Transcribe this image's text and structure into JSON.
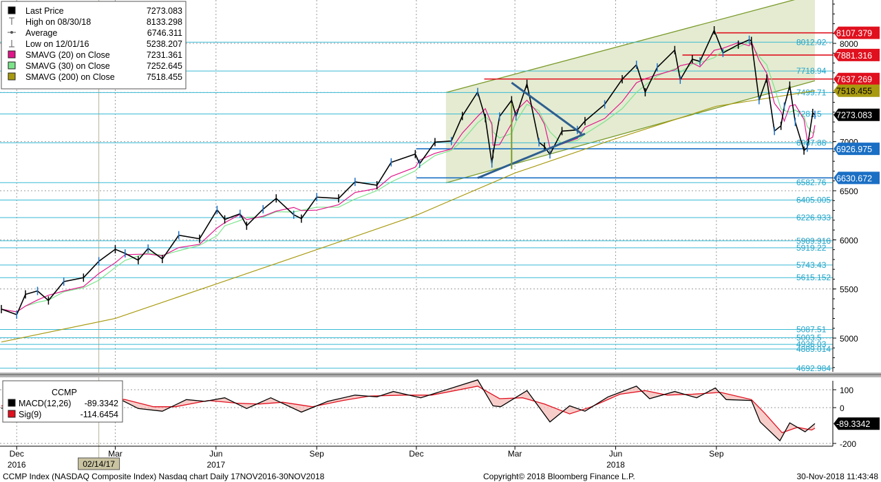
{
  "chart_data": {
    "type": "line",
    "instrument": "CCMP Index (NASDAQ Composite Index) Nasdaq chart  Daily 17NOV2016-30NOV2018",
    "copyright": "Copyright© 2018 Bloomberg Finance L.P.",
    "timestamp": "30-Nov-2018 11:43:48",
    "x_range": [
      "2016-11-17",
      "2018-11-30"
    ],
    "ylim": [
      4600,
      8450
    ],
    "y_ticks": [
      5000,
      5500,
      6000,
      6500,
      7000,
      7500,
      8000
    ],
    "x_month_labels": [
      {
        "label": "Dec",
        "date": "2016-12-01"
      },
      {
        "label": "Mar",
        "date": "2017-03-01"
      },
      {
        "label": "Jun",
        "date": "2017-06-01"
      },
      {
        "label": "Sep",
        "date": "2017-09-01"
      },
      {
        "label": "Dec",
        "date": "2017-12-01"
      },
      {
        "label": "Mar",
        "date": "2018-03-01"
      },
      {
        "label": "Jun",
        "date": "2018-06-01"
      },
      {
        "label": "Sep",
        "date": "2018-09-01"
      }
    ],
    "x_year_labels": [
      {
        "label": "2016",
        "date": "2016-12-01"
      },
      {
        "label": "2017",
        "date": "2017-06-01"
      },
      {
        "label": "2018",
        "date": "2018-06-01"
      }
    ],
    "cursor_date_label": "02/14/17",
    "cursor_date": "2017-02-14",
    "legend": [
      {
        "marker": "square",
        "color": "#000000",
        "label": "Last Price",
        "value": "7273.083"
      },
      {
        "marker": "high",
        "color": "#555555",
        "label": "High on 08/30/18",
        "value": "8133.298"
      },
      {
        "marker": "avg",
        "color": "#555555",
        "label": "Average",
        "value": "6746.311"
      },
      {
        "marker": "low",
        "color": "#555555",
        "label": "Low on 12/01/16",
        "value": "5238.207"
      },
      {
        "marker": "square",
        "color": "#e0168a",
        "label": "SMAVG (20)  on Close",
        "value": "7231.361"
      },
      {
        "marker": "square",
        "color": "#7be38a",
        "label": "SMAVG (30)  on Close",
        "value": "7252.645"
      },
      {
        "marker": "square",
        "color": "#a89a10",
        "label": "SMAVG (200)  on Close",
        "value": "7518.455"
      }
    ],
    "price_tags": [
      {
        "value": 8107.379,
        "label": "8107.379",
        "bg": "#e0101e",
        "fg": "#ffffff"
      },
      {
        "value": 7881.316,
        "label": "7881.316",
        "bg": "#e0101e",
        "fg": "#ffffff"
      },
      {
        "value": 7637.269,
        "label": "7637.269",
        "bg": "#e0101e",
        "fg": "#ffffff"
      },
      {
        "value": 7518.455,
        "label": "7518.455",
        "bg": "#a89a10",
        "fg": "#000000"
      },
      {
        "value": 7273.083,
        "label": "7273.083",
        "bg": "#000000",
        "fg": "#ffffff"
      },
      {
        "value": 6926.975,
        "label": "6926.975",
        "bg": "#1a6fc4",
        "fg": "#ffffff"
      },
      {
        "value": 6630.672,
        "label": "6630.672",
        "bg": "#1a6fc4",
        "fg": "#ffffff"
      }
    ],
    "resistance_lines": [
      {
        "value": 8107.379,
        "from": "2018-09-01"
      },
      {
        "value": 7881.316,
        "from": "2018-08-01"
      },
      {
        "value": 7637.269,
        "from": "2018-02-01"
      }
    ],
    "support_lines": [
      {
        "value": 6926.975,
        "from": "2017-12-01"
      },
      {
        "value": 6630.672,
        "from": "2017-12-01"
      }
    ],
    "fib_levels": [
      {
        "value": 8012.02,
        "label": "8012.02"
      },
      {
        "value": 7718.94,
        "label": "7718.94"
      },
      {
        "value": 7499.71,
        "label": "7499.71"
      },
      {
        "value": 7281.5,
        "label": "7281.5"
      },
      {
        "value": 6987.88,
        "label": "6987.88"
      },
      {
        "value": 6582.76,
        "label": "6582.76"
      },
      {
        "value": 6405.005,
        "label": "6405.005"
      },
      {
        "value": 6226.933,
        "label": "6226.933"
      },
      {
        "value": 5989.916,
        "label": "5989.916"
      },
      {
        "value": 5919.22,
        "label": "5919.22"
      },
      {
        "value": 5743.43,
        "label": "5743.43"
      },
      {
        "value": 5615.152,
        "label": "5615.152"
      },
      {
        "value": 5087.51,
        "label": "5087.51"
      },
      {
        "value": 5003.5,
        "label": "5003.5"
      },
      {
        "value": 4936.03,
        "label": "4936.03"
      },
      {
        "value": 4889.014,
        "label": "4889.014"
      },
      {
        "value": 4692.984,
        "label": "4692.984"
      }
    ],
    "price_path": [
      [
        "2016-11-17",
        5295
      ],
      [
        "2016-12-01",
        5238
      ],
      [
        "2016-12-09",
        5445
      ],
      [
        "2016-12-20",
        5480
      ],
      [
        "2016-12-30",
        5383
      ],
      [
        "2017-01-13",
        5575
      ],
      [
        "2017-01-31",
        5615
      ],
      [
        "2017-02-14",
        5782
      ],
      [
        "2017-03-01",
        5904
      ],
      [
        "2017-03-10",
        5862
      ],
      [
        "2017-03-22",
        5793
      ],
      [
        "2017-03-31",
        5912
      ],
      [
        "2017-04-13",
        5805
      ],
      [
        "2017-04-28",
        6047
      ],
      [
        "2017-05-17",
        6011
      ],
      [
        "2017-06-02",
        6305
      ],
      [
        "2017-06-09",
        6208
      ],
      [
        "2017-06-23",
        6265
      ],
      [
        "2017-06-29",
        6144
      ],
      [
        "2017-07-14",
        6312
      ],
      [
        "2017-07-26",
        6422
      ],
      [
        "2017-08-11",
        6256
      ],
      [
        "2017-08-18",
        6216
      ],
      [
        "2017-09-01",
        6435
      ],
      [
        "2017-09-21",
        6422
      ],
      [
        "2017-10-06",
        6590
      ],
      [
        "2017-10-26",
        6556
      ],
      [
        "2017-11-08",
        6789
      ],
      [
        "2017-11-30",
        6873
      ],
      [
        "2017-12-04",
        6775
      ],
      [
        "2017-12-18",
        6995
      ],
      [
        "2018-01-02",
        7006
      ],
      [
        "2018-01-12",
        7261
      ],
      [
        "2018-01-26",
        7505
      ],
      [
        "2018-02-02",
        7240
      ],
      [
        "2018-02-08",
        6777
      ],
      [
        "2018-02-09",
        6874
      ],
      [
        "2018-02-15",
        7256
      ],
      [
        "2018-02-26",
        7421
      ],
      [
        "2018-03-02",
        7257
      ],
      [
        "2018-03-12",
        7588
      ],
      [
        "2018-03-23",
        6993
      ],
      [
        "2018-03-28",
        6949
      ],
      [
        "2018-04-02",
        6870
      ],
      [
        "2018-04-13",
        7107
      ],
      [
        "2018-04-27",
        7119
      ],
      [
        "2018-05-04",
        7209
      ],
      [
        "2018-05-22",
        7379
      ],
      [
        "2018-06-07",
        7635
      ],
      [
        "2018-06-20",
        7782
      ],
      [
        "2018-06-28",
        7503
      ],
      [
        "2018-07-09",
        7756
      ],
      [
        "2018-07-25",
        7932
      ],
      [
        "2018-07-30",
        7630
      ],
      [
        "2018-08-10",
        7839
      ],
      [
        "2018-08-17",
        7816
      ],
      [
        "2018-08-30",
        8133
      ],
      [
        "2018-09-07",
        7903
      ],
      [
        "2018-09-21",
        7987
      ],
      [
        "2018-10-01",
        8037
      ],
      [
        "2018-10-03",
        8025
      ],
      [
        "2018-10-10",
        7422
      ],
      [
        "2018-10-17",
        7642
      ],
      [
        "2018-10-24",
        7108
      ],
      [
        "2018-10-30",
        7161
      ],
      [
        "2018-11-02",
        7357
      ],
      [
        "2018-11-07",
        7570
      ],
      [
        "2018-11-12",
        7200
      ],
      [
        "2018-11-20",
        6909
      ],
      [
        "2018-11-23",
        6938
      ],
      [
        "2018-11-28",
        7292
      ],
      [
        "2018-11-30",
        7273
      ]
    ],
    "sma200_path": [
      [
        "2016-11-17",
        4960
      ],
      [
        "2017-03-01",
        5200
      ],
      [
        "2017-06-01",
        5550
      ],
      [
        "2017-09-01",
        5900
      ],
      [
        "2017-12-01",
        6250
      ],
      [
        "2018-03-01",
        6680
      ],
      [
        "2018-06-01",
        7030
      ],
      [
        "2018-09-01",
        7360
      ],
      [
        "2018-11-30",
        7518
      ]
    ],
    "channel": {
      "upper": [
        [
          "2017-12-28",
          7500
        ],
        [
          "2018-11-30",
          8500
        ]
      ],
      "lower": [
        [
          "2017-12-28",
          6580
        ],
        [
          "2018-11-30",
          7620
        ]
      ]
    },
    "triangle": {
      "top": [
        [
          "2018-02-26",
          7600
        ],
        [
          "2018-05-01",
          7080
        ]
      ],
      "bottom": [
        [
          "2018-01-26",
          6630
        ],
        [
          "2018-05-04",
          7080
        ]
      ],
      "vertical_at": "2018-02-26"
    },
    "macd": {
      "title": "CCMP",
      "label_macd": "MACD(12,26)",
      "value_macd": "-89.3342",
      "label_sig": "Sig(9)",
      "value_sig": "-114.6454",
      "tag": "-89.3342",
      "ylim": [
        -230,
        160
      ],
      "y_ticks": [
        100,
        0,
        -200
      ],
      "macd_path": [
        [
          "2016-11-17",
          -5
        ],
        [
          "2016-12-09",
          55
        ],
        [
          "2016-12-30",
          10
        ],
        [
          "2017-01-20",
          30
        ],
        [
          "2017-02-14",
          60
        ],
        [
          "2017-03-01",
          60
        ],
        [
          "2017-03-22",
          -5
        ],
        [
          "2017-04-13",
          -20
        ],
        [
          "2017-05-05",
          45
        ],
        [
          "2017-05-22",
          35
        ],
        [
          "2017-06-09",
          55
        ],
        [
          "2017-06-29",
          -5
        ],
        [
          "2017-07-21",
          55
        ],
        [
          "2017-08-18",
          -25
        ],
        [
          "2017-09-11",
          35
        ],
        [
          "2017-10-06",
          70
        ],
        [
          "2017-10-26",
          60
        ],
        [
          "2017-11-10",
          90
        ],
        [
          "2017-12-05",
          55
        ],
        [
          "2018-01-26",
          155
        ],
        [
          "2018-02-09",
          10
        ],
        [
          "2018-02-16",
          5
        ],
        [
          "2018-03-12",
          95
        ],
        [
          "2018-04-02",
          -80
        ],
        [
          "2018-04-20",
          10
        ],
        [
          "2018-05-04",
          -20
        ],
        [
          "2018-05-25",
          60
        ],
        [
          "2018-06-20",
          120
        ],
        [
          "2018-07-02",
          50
        ],
        [
          "2018-07-25",
          90
        ],
        [
          "2018-08-14",
          55
        ],
        [
          "2018-08-31",
          110
        ],
        [
          "2018-09-10",
          45
        ],
        [
          "2018-10-03",
          40
        ],
        [
          "2018-10-11",
          -80
        ],
        [
          "2018-10-29",
          -185
        ],
        [
          "2018-11-07",
          -85
        ],
        [
          "2018-11-21",
          -135
        ],
        [
          "2018-11-30",
          -89
        ]
      ],
      "sig_path": [
        [
          "2016-11-17",
          10
        ],
        [
          "2016-12-15",
          35
        ],
        [
          "2017-01-10",
          25
        ],
        [
          "2017-02-20",
          55
        ],
        [
          "2017-03-10",
          45
        ],
        [
          "2017-04-05",
          5
        ],
        [
          "2017-04-25",
          5
        ],
        [
          "2017-05-25",
          40
        ],
        [
          "2017-06-20",
          25
        ],
        [
          "2017-07-10",
          20
        ],
        [
          "2017-08-01",
          30
        ],
        [
          "2017-08-28",
          5
        ],
        [
          "2017-09-25",
          40
        ],
        [
          "2017-10-20",
          65
        ],
        [
          "2017-11-20",
          70
        ],
        [
          "2017-12-15",
          70
        ],
        [
          "2018-01-26",
          120
        ],
        [
          "2018-02-15",
          50
        ],
        [
          "2018-03-08",
          55
        ],
        [
          "2018-03-28",
          20
        ],
        [
          "2018-04-20",
          -35
        ],
        [
          "2018-05-10",
          5
        ],
        [
          "2018-06-05",
          75
        ],
        [
          "2018-06-28",
          95
        ],
        [
          "2018-07-18",
          70
        ],
        [
          "2018-08-10",
          75
        ],
        [
          "2018-09-05",
          85
        ],
        [
          "2018-10-03",
          45
        ],
        [
          "2018-10-15",
          -30
        ],
        [
          "2018-10-31",
          -140
        ],
        [
          "2018-11-14",
          -110
        ],
        [
          "2018-11-27",
          -125
        ],
        [
          "2018-11-30",
          -115
        ]
      ]
    }
  }
}
